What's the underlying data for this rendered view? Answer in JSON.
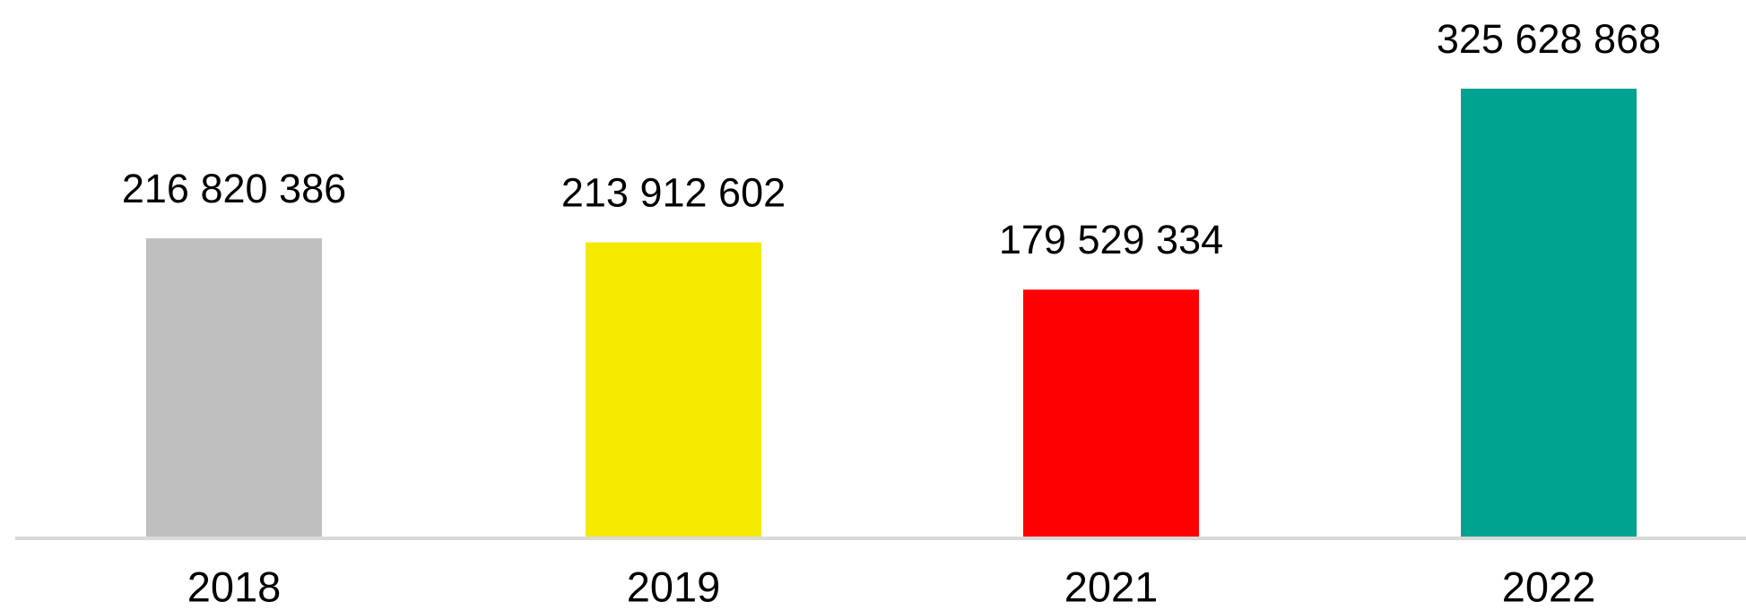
{
  "chart_data": {
    "type": "bar",
    "categories": [
      "2018",
      "2019",
      "2021",
      "2022"
    ],
    "values": [
      216820386,
      213912602,
      179529334,
      325628868
    ],
    "value_labels": [
      "216 820 386",
      "213 912 602",
      "179 529 334",
      "325 628 868"
    ],
    "colors": [
      "#bfbfbf",
      "#f5e900",
      "#ff0000",
      "#00a38f"
    ]
  }
}
